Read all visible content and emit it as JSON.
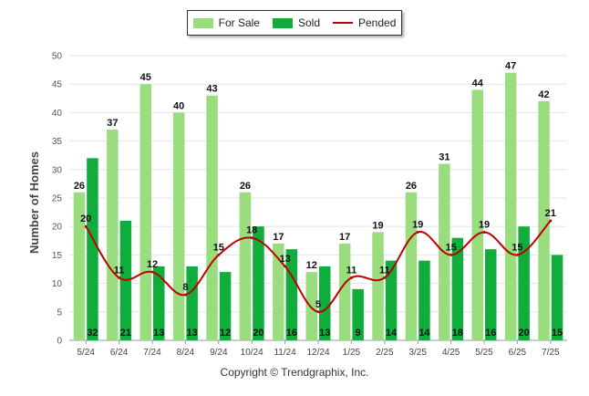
{
  "legend": {
    "for_sale": "For Sale",
    "sold": "Sold",
    "pended": "Pended"
  },
  "footer": "Copyright © Trendgraphix, Inc.",
  "colors": {
    "for_sale": "#99dd7e",
    "sold": "#10ac3c",
    "pended": "#c00000"
  },
  "chart_data": {
    "type": "bar",
    "title": "",
    "xlabel": "",
    "ylabel": "Number of Homes",
    "ylim": [
      0,
      50
    ],
    "yticks": [
      0,
      5,
      10,
      15,
      20,
      25,
      30,
      35,
      40,
      45,
      50
    ],
    "grid": true,
    "legend_position": "top-center",
    "categories": [
      "5/24",
      "6/24",
      "7/24",
      "8/24",
      "9/24",
      "10/24",
      "11/24",
      "12/24",
      "1/25",
      "2/25",
      "3/25",
      "4/25",
      "5/25",
      "6/25",
      "7/25"
    ],
    "series": [
      {
        "name": "For Sale",
        "type": "bar",
        "values": [
          26,
          37,
          45,
          40,
          43,
          26,
          17,
          12,
          17,
          19,
          26,
          31,
          44,
          47,
          42
        ]
      },
      {
        "name": "Sold",
        "type": "bar",
        "values": [
          32,
          21,
          13,
          13,
          12,
          20,
          16,
          13,
          9,
          14,
          14,
          18,
          16,
          20,
          15
        ]
      },
      {
        "name": "Pended",
        "type": "line",
        "values": [
          20,
          11,
          12,
          8,
          15,
          18,
          13,
          5,
          11,
          11,
          19,
          15,
          19,
          15,
          21
        ]
      }
    ]
  }
}
